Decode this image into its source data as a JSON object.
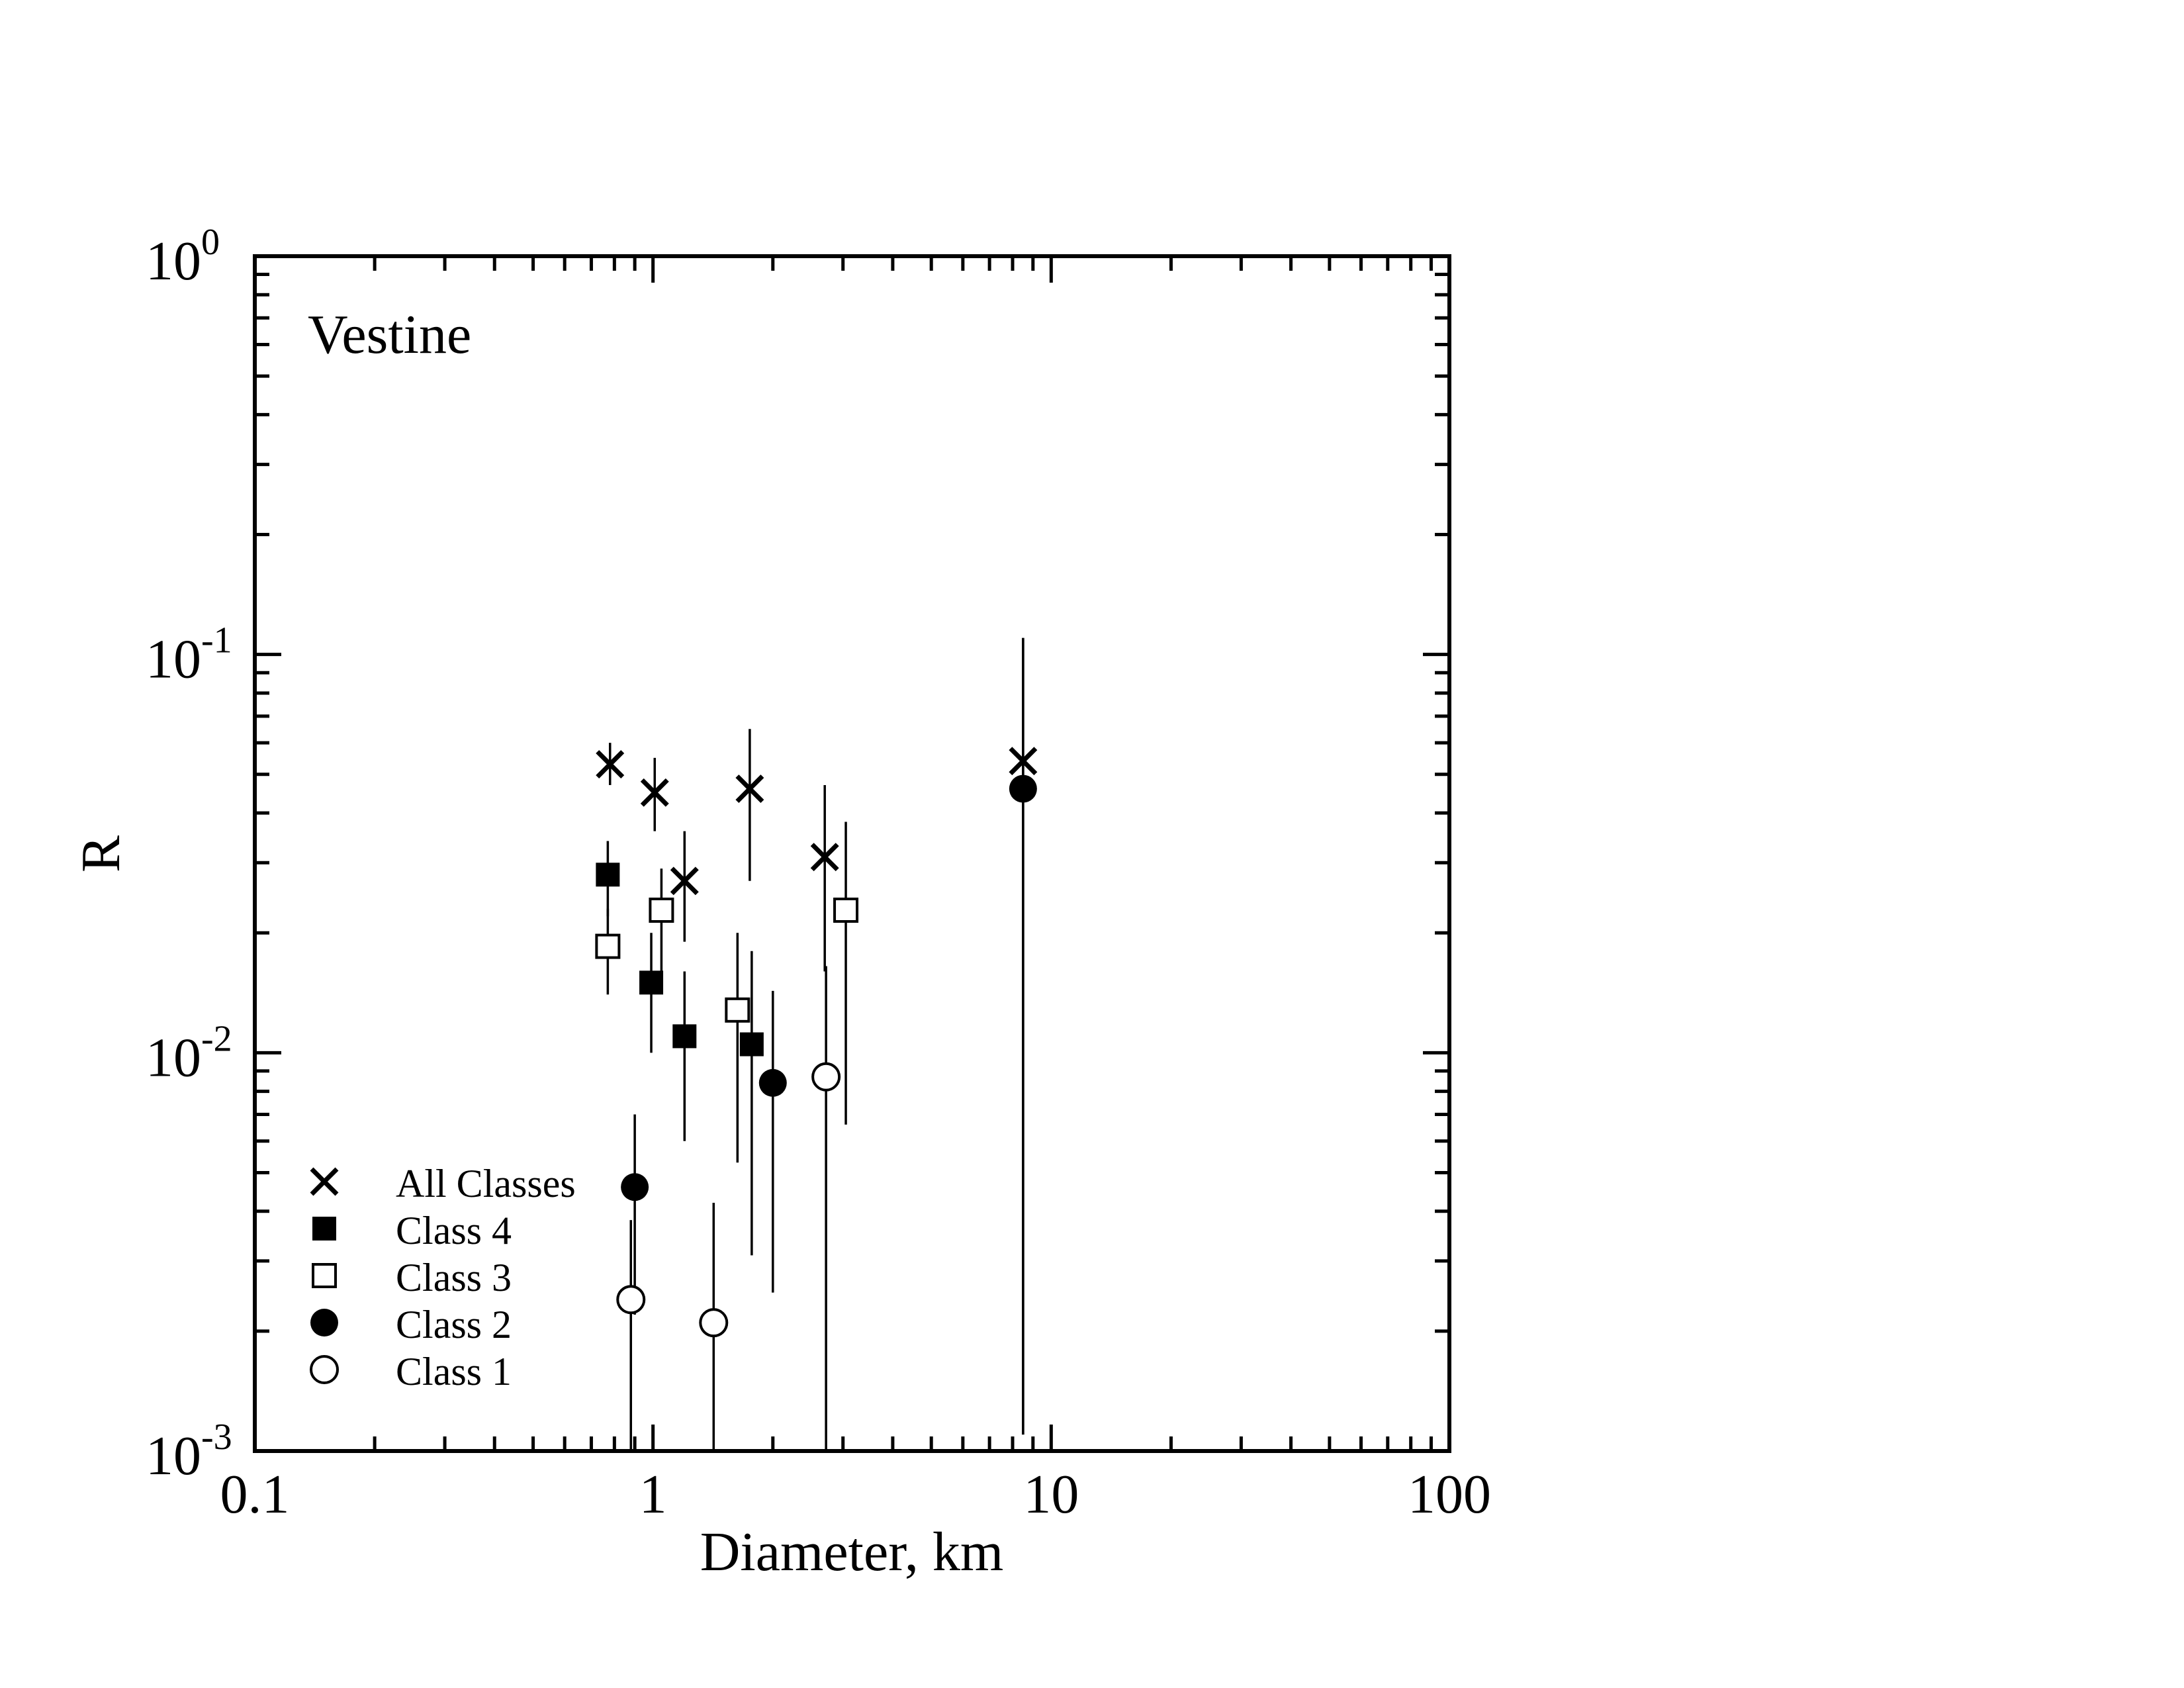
{
  "chart_data": {
    "type": "scatter",
    "title": "",
    "annotation": "Vestine",
    "xlabel": "Diameter, km",
    "ylabel": "R",
    "xscale": "log",
    "yscale": "log",
    "xlim": [
      0.1,
      100
    ],
    "ylim": [
      0.001,
      1
    ],
    "x_tick_labels": [
      "0.1",
      "1",
      "10",
      "100"
    ],
    "y_tick_labels": [
      {
        "base": "10",
        "exp": "-3"
      },
      {
        "base": "10",
        "exp": "-2"
      },
      {
        "base": "10",
        "exp": "-1"
      },
      {
        "base": "10",
        "exp": "0"
      }
    ],
    "grid": false,
    "legend_position": "bottom-left",
    "series": [
      {
        "name": "All Classes",
        "marker": "x",
        "points": [
          {
            "x": 0.78,
            "y": 0.053,
            "ylo": 0.047,
            "yhi": 0.06
          },
          {
            "x": 1.01,
            "y": 0.045,
            "ylo": 0.036,
            "yhi": 0.055
          },
          {
            "x": 1.2,
            "y": 0.027,
            "ylo": 0.019,
            "yhi": 0.036
          },
          {
            "x": 1.75,
            "y": 0.046,
            "ylo": 0.027,
            "yhi": 0.065
          },
          {
            "x": 2.7,
            "y": 0.031,
            "ylo": 0.016,
            "yhi": 0.047
          },
          {
            "x": 8.5,
            "y": 0.054,
            "ylo": 0.0011,
            "yhi": 0.11
          }
        ]
      },
      {
        "name": "Class 4",
        "marker": "filled-square",
        "points": [
          {
            "x": 0.77,
            "y": 0.028,
            "ylo": 0.022,
            "yhi": 0.034
          },
          {
            "x": 0.99,
            "y": 0.015,
            "ylo": 0.01,
            "yhi": 0.02
          },
          {
            "x": 1.2,
            "y": 0.011,
            "ylo": 0.006,
            "yhi": 0.016
          },
          {
            "x": 1.77,
            "y": 0.0105,
            "ylo": 0.0031,
            "yhi": 0.018
          }
        ]
      },
      {
        "name": "Class 3",
        "marker": "open-square",
        "points": [
          {
            "x": 0.77,
            "y": 0.0185,
            "ylo": 0.014,
            "yhi": 0.023
          },
          {
            "x": 1.05,
            "y": 0.0228,
            "ylo": 0.016,
            "yhi": 0.029
          },
          {
            "x": 1.63,
            "y": 0.0128,
            "ylo": 0.0053,
            "yhi": 0.02
          },
          {
            "x": 3.05,
            "y": 0.0228,
            "ylo": 0.0066,
            "yhi": 0.038
          }
        ]
      },
      {
        "name": "Class 2",
        "marker": "filled-circle",
        "points": [
          {
            "x": 0.9,
            "y": 0.0046,
            "ylo": 0.0022,
            "yhi": 0.007
          },
          {
            "x": 2.0,
            "y": 0.0084,
            "ylo": 0.0025,
            "yhi": 0.0143
          },
          {
            "x": 8.5,
            "y": 0.046,
            "ylo": 0.0011,
            "yhi": 0.11
          }
        ]
      },
      {
        "name": "Class 1",
        "marker": "open-circle",
        "points": [
          {
            "x": 0.88,
            "y": 0.0024,
            "ylo": 0.001,
            "yhi": 0.0038
          },
          {
            "x": 1.42,
            "y": 0.0021,
            "ylo": 0.001,
            "yhi": 0.0042
          },
          {
            "x": 2.72,
            "y": 0.0087,
            "ylo": 0.001,
            "yhi": 0.0165
          }
        ]
      }
    ]
  }
}
